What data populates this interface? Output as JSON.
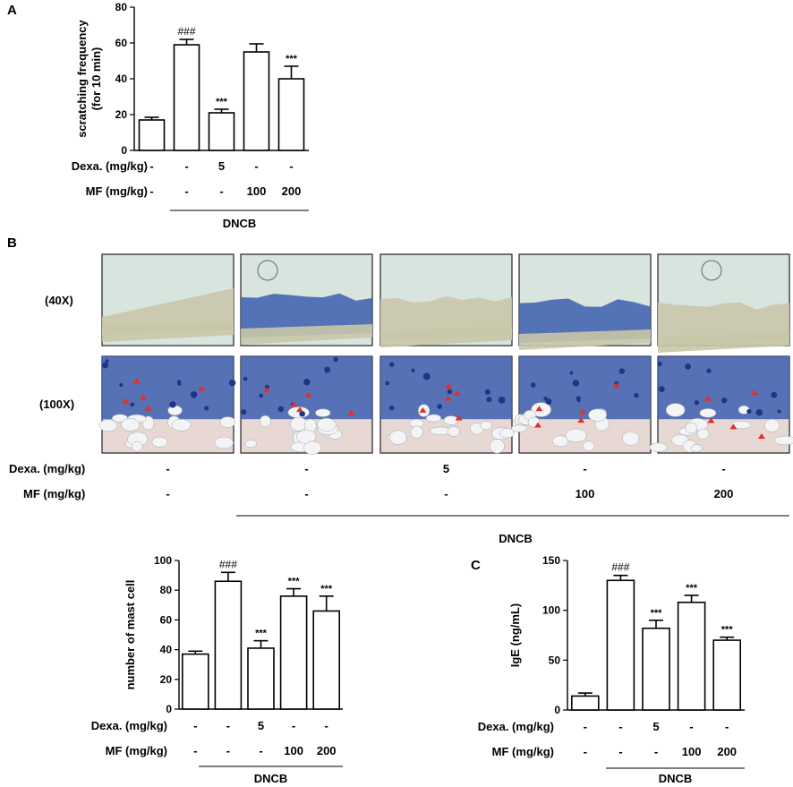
{
  "panels": {
    "A": "A",
    "B": "B",
    "C": "C"
  },
  "chart_data": [
    {
      "type": "bar",
      "panel": "A",
      "ylabel": "scratching frequency\n(for 10 min)",
      "ylim": [
        0,
        80
      ],
      "yticks": [
        0,
        20,
        40,
        60,
        80
      ],
      "values": [
        17,
        59,
        21,
        55,
        40
      ],
      "errors": [
        1.5,
        3,
        2,
        4.5,
        7
      ],
      "annotations": [
        "",
        "###",
        "***",
        "",
        "***"
      ],
      "rows": [
        {
          "label": "Dexa. (mg/kg)",
          "values": [
            "-",
            "-",
            "5",
            "-",
            "-"
          ]
        },
        {
          "label": "MF (mg/kg)",
          "values": [
            "-",
            "-",
            "-",
            "100",
            "200"
          ]
        }
      ],
      "group_label": "DNCB"
    },
    {
      "type": "bar",
      "panel": "B",
      "ylabel": "number of mast cell",
      "ylim": [
        0,
        100
      ],
      "yticks": [
        0,
        20,
        40,
        60,
        80,
        100
      ],
      "values": [
        37,
        86,
        41,
        76,
        66
      ],
      "errors": [
        2,
        6,
        5,
        5,
        10
      ],
      "annotations": [
        "",
        "###",
        "***",
        "***",
        "***"
      ],
      "rows": [
        {
          "label": "Dexa. (mg/kg)",
          "values": [
            "-",
            "-",
            "5",
            "-",
            "-"
          ]
        },
        {
          "label": "MF (mg/kg)",
          "values": [
            "-",
            "-",
            "-",
            "100",
            "200"
          ]
        }
      ],
      "group_label": "DNCB"
    },
    {
      "type": "bar",
      "panel": "C",
      "ylabel": "IgE (ng/mL)",
      "ylim": [
        0,
        150
      ],
      "yticks": [
        0,
        50,
        100,
        150
      ],
      "values": [
        14,
        130,
        82,
        108,
        70
      ],
      "errors": [
        3,
        5,
        8,
        7,
        3
      ],
      "annotations": [
        "",
        "###",
        "***",
        "***",
        "***"
      ],
      "rows": [
        {
          "label": "Dexa. (mg/kg)",
          "values": [
            "-",
            "-",
            "5",
            "-",
            "-"
          ]
        },
        {
          "label": "MF (mg/kg)",
          "values": [
            "-",
            "-",
            "-",
            "100",
            "200"
          ]
        }
      ],
      "group_label": "DNCB"
    }
  ],
  "histology": {
    "magnifications": [
      "(40X)",
      "(100X)"
    ],
    "rows": [
      {
        "label": "Dexa. (mg/kg)",
        "values": [
          "-",
          "-",
          "5",
          "-",
          "-"
        ]
      },
      {
        "label": "MF (mg/kg)",
        "values": [
          "-",
          "-",
          "-",
          "100",
          "200"
        ]
      }
    ],
    "group_label": "DNCB",
    "colors": {
      "background": "#d8e4de",
      "tissue_pale": "#c9c6a8",
      "stain_blue": "#3d5fb0",
      "stain_dark": "#1e3588",
      "marker": "#e0302a"
    }
  }
}
